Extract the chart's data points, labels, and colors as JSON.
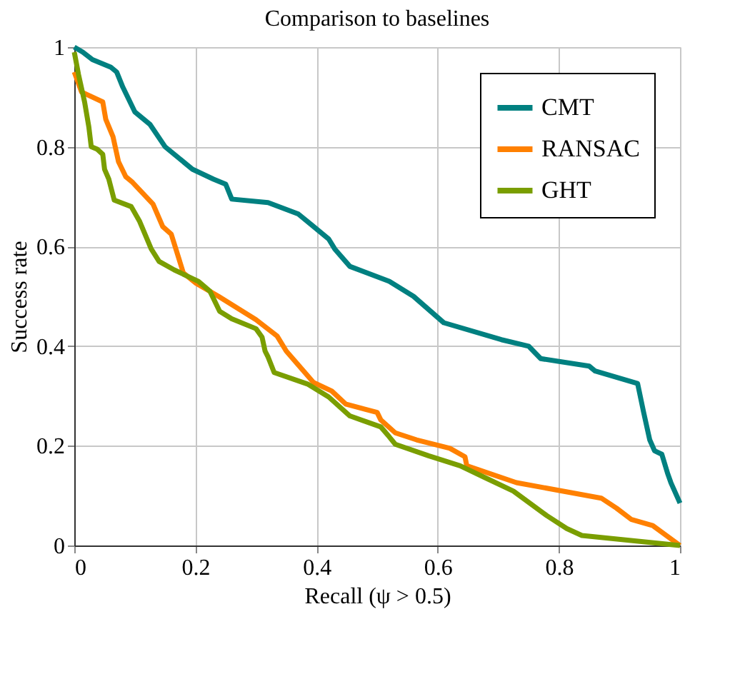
{
  "chart_data": {
    "type": "line",
    "title": "Comparison to baselines",
    "xlabel": "Recall (ψ > 0.5)",
    "ylabel": "Success rate",
    "xlim": [
      0,
      1
    ],
    "ylim": [
      0,
      1
    ],
    "xticks": [
      0,
      0.2,
      0.4,
      0.6,
      0.8,
      1
    ],
    "yticks": [
      0,
      0.2,
      0.4,
      0.6,
      0.8,
      1
    ],
    "grid": true,
    "legend": "top right",
    "marker": "none",
    "line_style": "solid",
    "series": [
      {
        "name": "CMT",
        "color": "#008080",
        "x": [
          0,
          0.014,
          0.03,
          0.06,
          0.07,
          0.08,
          0.1,
          0.125,
          0.15,
          0.195,
          0.23,
          0.25,
          0.26,
          0.32,
          0.37,
          0.39,
          0.42,
          0.43,
          0.455,
          0.52,
          0.56,
          0.61,
          0.705,
          0.75,
          0.77,
          0.85,
          0.86,
          0.93,
          0.94,
          0.95,
          0.958,
          0.97,
          0.98,
          0.985,
          1
        ],
        "values": [
          1,
          0.99,
          0.975,
          0.96,
          0.95,
          0.92,
          0.87,
          0.845,
          0.8,
          0.755,
          0.735,
          0.725,
          0.695,
          0.688,
          0.665,
          0.645,
          0.615,
          0.595,
          0.56,
          0.53,
          0.5,
          0.447,
          0.413,
          0.4,
          0.375,
          0.36,
          0.35,
          0.325,
          0.267,
          0.212,
          0.19,
          0.183,
          0.143,
          0.126,
          0.085
        ]
      },
      {
        "name": "RANSAC",
        "color": "#ff8000",
        "x": [
          0,
          0.012,
          0.047,
          0.052,
          0.064,
          0.073,
          0.085,
          0.095,
          0.13,
          0.146,
          0.16,
          0.18,
          0.2,
          0.238,
          0.3,
          0.335,
          0.35,
          0.395,
          0.425,
          0.448,
          0.5,
          0.506,
          0.53,
          0.565,
          0.62,
          0.645,
          0.648,
          0.73,
          0.87,
          0.895,
          0.92,
          0.955,
          1
        ],
        "values": [
          0.95,
          0.91,
          0.89,
          0.855,
          0.82,
          0.77,
          0.74,
          0.73,
          0.685,
          0.64,
          0.625,
          0.547,
          0.527,
          0.5,
          0.453,
          0.42,
          0.39,
          0.327,
          0.31,
          0.284,
          0.267,
          0.252,
          0.226,
          0.212,
          0.195,
          0.178,
          0.16,
          0.126,
          0.095,
          0.075,
          0.052,
          0.04,
          0
        ]
      },
      {
        "name": "GHT",
        "color": "#7a9e00",
        "x": [
          0,
          0.007,
          0.017,
          0.024,
          0.028,
          0.038,
          0.047,
          0.05,
          0.057,
          0.066,
          0.094,
          0.108,
          0.127,
          0.14,
          0.165,
          0.205,
          0.224,
          0.24,
          0.26,
          0.3,
          0.31,
          0.315,
          0.32,
          0.33,
          0.385,
          0.42,
          0.455,
          0.506,
          0.52,
          0.53,
          0.585,
          0.637,
          0.68,
          0.725,
          0.78,
          0.813,
          0.838,
          1
        ],
        "values": [
          0.99,
          0.945,
          0.89,
          0.84,
          0.8,
          0.795,
          0.785,
          0.755,
          0.735,
          0.693,
          0.68,
          0.65,
          0.595,
          0.57,
          0.553,
          0.53,
          0.51,
          0.47,
          0.455,
          0.435,
          0.418,
          0.39,
          0.378,
          0.347,
          0.324,
          0.298,
          0.26,
          0.238,
          0.218,
          0.203,
          0.18,
          0.16,
          0.135,
          0.109,
          0.06,
          0.034,
          0.02,
          0
        ]
      }
    ]
  }
}
